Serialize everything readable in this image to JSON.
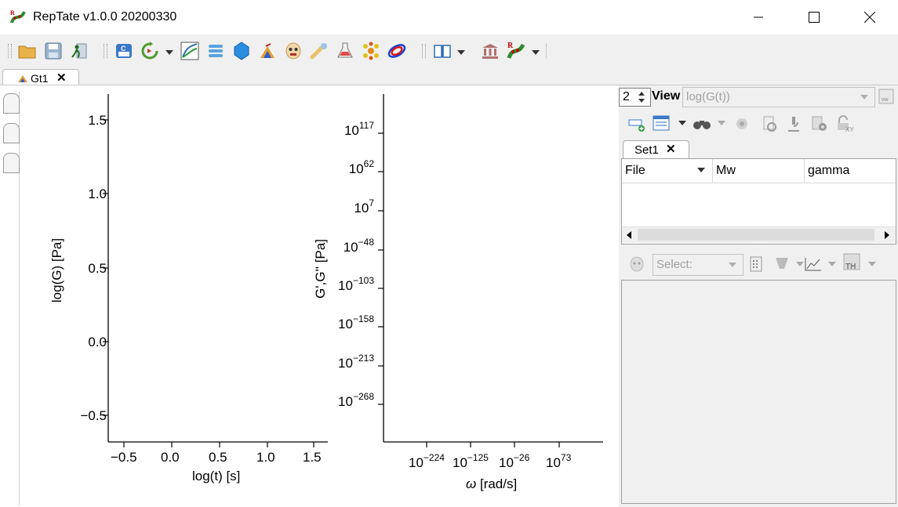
{
  "window": {
    "title": "RepTate v1.0.0 20200330",
    "controls": [
      "minimize-icon",
      "maximize-icon",
      "close-icon"
    ]
  },
  "toolbar": {
    "icons": [
      "open-folder-icon",
      "save-icon",
      "exit-icon",
      "new-app-icon",
      "reload-icon",
      "linear-rheology-icon",
      "nlve-icon",
      "crystal-icon",
      "creep-icon",
      "mask-icon",
      "polymer-icon",
      "flask-icon",
      "dendrimer-icon",
      "ring-icon",
      "manual-icon",
      "library-icon",
      "reptate-logo-icon"
    ]
  },
  "app_tabs": [
    {
      "label": "Gt1",
      "close": "✕"
    }
  ],
  "plots": {
    "left": {
      "xlabel": "log(t) [s]",
      "ylabel": "log(G) [Pa]",
      "xticks": [
        "−0.5",
        "0.0",
        "0.5",
        "1.0",
        "1.5"
      ],
      "yticks": [
        "1.5",
        "1.0",
        "0.5",
        "0.0",
        "−0.5"
      ]
    },
    "right": {
      "xlabel_symbol": "ω",
      "xlabel_rest": " [rad/s]",
      "ylabel": "G',G'' [Pa]",
      "xticks": [
        {
          "base": "10",
          "exp": "−224"
        },
        {
          "base": "10",
          "exp": "−125"
        },
        {
          "base": "10",
          "exp": "−26"
        },
        {
          "base": "10",
          "exp": "73"
        }
      ],
      "yticks": [
        {
          "base": "10",
          "exp": "117"
        },
        {
          "base": "10",
          "exp": "62"
        },
        {
          "base": "10",
          "exp": "7"
        },
        {
          "base": "10",
          "exp": "−48"
        },
        {
          "base": "10",
          "exp": "−103"
        },
        {
          "base": "10",
          "exp": "−158"
        },
        {
          "base": "10",
          "exp": "−213"
        },
        {
          "base": "10",
          "exp": "−268"
        }
      ]
    }
  },
  "right_panel": {
    "view_count": "2",
    "view_label": "View",
    "view_value": "log(G(t))",
    "set_tab": {
      "label": "Set1",
      "close": "✕"
    },
    "table": {
      "columns": [
        "File",
        "Mw",
        "gamma"
      ],
      "rows": []
    },
    "theory_select_placeholder": "Select:"
  }
}
